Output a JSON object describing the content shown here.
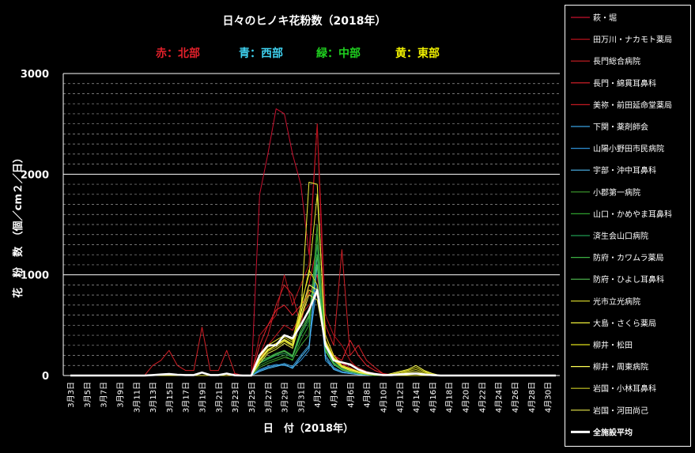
{
  "chart_data": {
    "type": "line",
    "title": "日々のヒノキ花粉数（2018年）",
    "region_labels": [
      {
        "text": "赤：北部",
        "color": "#e0202a"
      },
      {
        "text": "青：西部",
        "color": "#3fd2f0"
      },
      {
        "text": "緑：中部",
        "color": "#1fd01f"
      },
      {
        "text": "黄：東部",
        "color": "#f0f000"
      }
    ],
    "xlabel": "日　付（2018年）",
    "ylabel": "花　粉　数　（個／cm２／日）",
    "ylim": [
      0,
      3000
    ],
    "yticks": [
      "0",
      "1000",
      "2000",
      "3000"
    ],
    "minor_gridlines": true,
    "legend_position": "right",
    "x_tick_labels": [
      "3月3日",
      "3月5日",
      "3月7日",
      "3月9日",
      "3月11日",
      "3月13日",
      "3月15日",
      "3月17日",
      "3月19日",
      "3月21日",
      "3月23日",
      "3月25日",
      "3月27日",
      "3月29日",
      "3月31日",
      "4月2日",
      "4月4日",
      "4月6日",
      "4月8日",
      "4月10日",
      "4月12日",
      "4月14日",
      "4月16日",
      "4月18日",
      "4月20日",
      "4月22日",
      "4月24日",
      "4月26日",
      "4月28日",
      "4月30日"
    ],
    "series": [
      {
        "name": "萩・堀",
        "color": "#c8102e",
        "values": [
          0,
          0,
          0,
          0,
          0,
          0,
          0,
          0,
          0,
          0,
          0,
          0,
          0,
          0,
          0,
          0,
          0,
          0,
          0,
          0,
          20,
          0,
          0,
          1800,
          2200,
          2650,
          2600,
          2200,
          1900,
          1200,
          2500,
          300,
          200,
          120,
          80,
          40,
          20,
          0,
          0,
          0,
          0,
          0,
          0,
          0,
          0,
          0,
          0,
          0,
          0,
          0,
          0,
          0,
          0,
          0,
          0,
          0,
          0,
          0,
          0,
          0
        ]
      },
      {
        "name": "田万川・ナカモト薬局",
        "color": "#b5121b",
        "values": [
          0,
          0,
          0,
          0,
          0,
          0,
          0,
          0,
          0,
          0,
          0,
          0,
          0,
          0,
          0,
          0,
          0,
          0,
          0,
          0,
          10,
          0,
          0,
          400,
          500,
          600,
          1000,
          700,
          900,
          1100,
          2500,
          600,
          400,
          300,
          150,
          60,
          30,
          10,
          0,
          0,
          0,
          0,
          0,
          0,
          0,
          0,
          0,
          0,
          0,
          0,
          0,
          0,
          0,
          0,
          0,
          0,
          0,
          0,
          0,
          0
        ]
      },
      {
        "name": "長門総合病院",
        "color": "#d11f26",
        "values": [
          0,
          0,
          0,
          0,
          0,
          0,
          0,
          0,
          0,
          0,
          100,
          150,
          250,
          100,
          50,
          50,
          480,
          50,
          50,
          250,
          20,
          0,
          0,
          200,
          400,
          700,
          900,
          800,
          500,
          900,
          1300,
          500,
          300,
          1250,
          200,
          300,
          150,
          80,
          20,
          10,
          0,
          0,
          0,
          0,
          0,
          0,
          0,
          0,
          0,
          0,
          0,
          0,
          0,
          0,
          0,
          0,
          0,
          0,
          0,
          0
        ]
      },
      {
        "name": "長門・綿貫耳鼻科",
        "color": "#e4222c",
        "values": [
          0,
          0,
          0,
          0,
          0,
          0,
          0,
          0,
          0,
          0,
          0,
          0,
          0,
          0,
          0,
          0,
          0,
          0,
          0,
          0,
          0,
          0,
          0,
          300,
          500,
          650,
          700,
          600,
          700,
          800,
          1000,
          400,
          200,
          150,
          350,
          200,
          100,
          50,
          20,
          0,
          0,
          0,
          0,
          0,
          0,
          0,
          0,
          0,
          0,
          0,
          0,
          0,
          0,
          0,
          0,
          0,
          0,
          0,
          0,
          0
        ]
      },
      {
        "name": "美祢・前田延命堂薬局",
        "color": "#c41a22",
        "values": [
          0,
          0,
          0,
          0,
          0,
          0,
          0,
          0,
          0,
          0,
          0,
          0,
          0,
          0,
          0,
          0,
          0,
          0,
          0,
          0,
          0,
          0,
          0,
          150,
          300,
          400,
          500,
          450,
          600,
          700,
          800,
          300,
          150,
          100,
          120,
          80,
          40,
          20,
          0,
          0,
          0,
          0,
          0,
          0,
          0,
          0,
          0,
          0,
          0,
          0,
          0,
          0,
          0,
          0,
          0,
          0,
          0,
          0,
          0,
          0
        ]
      },
      {
        "name": "下関・薬剤師会",
        "color": "#3aa0e0",
        "values": [
          0,
          0,
          0,
          0,
          0,
          0,
          0,
          0,
          0,
          0,
          0,
          0,
          0,
          0,
          0,
          0,
          0,
          0,
          0,
          0,
          0,
          0,
          0,
          50,
          80,
          100,
          120,
          90,
          200,
          300,
          900,
          200,
          80,
          40,
          30,
          20,
          10,
          0,
          0,
          0,
          0,
          0,
          0,
          0,
          0,
          0,
          0,
          0,
          0,
          0,
          0,
          0,
          0,
          0,
          0,
          0,
          0,
          0,
          0,
          0
        ]
      },
      {
        "name": "山陽小野田市民病院",
        "color": "#2d8fd5",
        "values": [
          0,
          0,
          0,
          0,
          0,
          0,
          0,
          0,
          0,
          0,
          0,
          0,
          0,
          0,
          0,
          0,
          0,
          0,
          0,
          0,
          0,
          0,
          0,
          60,
          90,
          110,
          100,
          80,
          150,
          250,
          1100,
          150,
          70,
          30,
          20,
          10,
          5,
          0,
          0,
          0,
          0,
          0,
          0,
          0,
          0,
          0,
          0,
          0,
          0,
          0,
          0,
          0,
          0,
          0,
          0,
          0,
          0,
          0,
          0,
          0
        ]
      },
      {
        "name": "宇部・沖中耳鼻科",
        "color": "#4fb8f0",
        "values": [
          0,
          0,
          0,
          0,
          0,
          0,
          0,
          0,
          0,
          0,
          0,
          0,
          0,
          0,
          0,
          0,
          0,
          0,
          0,
          0,
          0,
          0,
          0,
          40,
          70,
          90,
          110,
          70,
          180,
          280,
          1200,
          180,
          60,
          30,
          20,
          10,
          5,
          0,
          0,
          0,
          0,
          0,
          0,
          0,
          0,
          0,
          0,
          0,
          0,
          0,
          0,
          0,
          0,
          0,
          0,
          0,
          0,
          0,
          0,
          0
        ]
      },
      {
        "name": "小郡第一病院",
        "color": "#3fa02f",
        "values": [
          0,
          0,
          0,
          0,
          0,
          0,
          0,
          0,
          0,
          0,
          0,
          0,
          0,
          0,
          0,
          0,
          0,
          0,
          0,
          0,
          0,
          0,
          0,
          80,
          120,
          150,
          180,
          160,
          300,
          400,
          1500,
          250,
          120,
          60,
          40,
          20,
          10,
          0,
          0,
          0,
          0,
          0,
          0,
          0,
          0,
          0,
          0,
          0,
          0,
          0,
          0,
          0,
          0,
          0,
          0,
          0,
          0,
          0,
          0,
          0
        ]
      },
      {
        "name": "山口・かめやま耳鼻科",
        "color": "#2e9e2e",
        "values": [
          0,
          0,
          0,
          0,
          0,
          0,
          0,
          0,
          0,
          0,
          0,
          0,
          0,
          0,
          0,
          0,
          0,
          0,
          0,
          0,
          0,
          0,
          0,
          100,
          140,
          170,
          200,
          150,
          350,
          500,
          1400,
          300,
          150,
          80,
          50,
          30,
          10,
          0,
          0,
          0,
          0,
          0,
          0,
          0,
          0,
          0,
          0,
          0,
          0,
          0,
          0,
          0,
          0,
          0,
          0,
          0,
          0,
          0,
          0,
          0
        ]
      },
      {
        "name": "済生会山口病院",
        "color": "#1f9a4f",
        "values": [
          0,
          0,
          0,
          0,
          0,
          0,
          0,
          0,
          0,
          0,
          0,
          0,
          0,
          0,
          0,
          0,
          0,
          0,
          0,
          0,
          0,
          0,
          0,
          120,
          160,
          200,
          220,
          180,
          400,
          550,
          1300,
          280,
          130,
          70,
          40,
          20,
          10,
          0,
          0,
          0,
          0,
          0,
          0,
          0,
          0,
          0,
          0,
          0,
          0,
          0,
          0,
          0,
          0,
          0,
          0,
          0,
          0,
          0,
          0,
          0
        ]
      },
      {
        "name": "防府・カワムラ薬局",
        "color": "#3cb043",
        "values": [
          0,
          0,
          0,
          0,
          0,
          0,
          0,
          0,
          0,
          0,
          0,
          0,
          0,
          0,
          0,
          0,
          0,
          0,
          0,
          0,
          0,
          0,
          0,
          150,
          180,
          220,
          250,
          200,
          450,
          600,
          1200,
          260,
          120,
          60,
          40,
          20,
          10,
          0,
          0,
          0,
          0,
          0,
          0,
          0,
          0,
          0,
          0,
          0,
          0,
          0,
          0,
          0,
          0,
          0,
          0,
          0,
          0,
          0,
          0,
          0
        ]
      },
      {
        "name": "防府・ひよし耳鼻科",
        "color": "#52c152",
        "values": [
          0,
          0,
          0,
          0,
          0,
          0,
          0,
          0,
          0,
          0,
          0,
          0,
          0,
          0,
          0,
          0,
          0,
          0,
          0,
          0,
          0,
          0,
          0,
          130,
          170,
          210,
          240,
          190,
          420,
          580,
          1100,
          240,
          110,
          55,
          35,
          20,
          10,
          0,
          0,
          0,
          0,
          0,
          0,
          0,
          0,
          0,
          0,
          0,
          0,
          0,
          0,
          0,
          0,
          0,
          0,
          0,
          0,
          0,
          0,
          0
        ]
      },
      {
        "name": "光市立光病院",
        "color": "#e6e62e",
        "values": [
          0,
          0,
          0,
          0,
          0,
          0,
          0,
          0,
          0,
          0,
          0,
          0,
          0,
          0,
          0,
          0,
          0,
          0,
          0,
          0,
          0,
          0,
          0,
          200,
          300,
          350,
          400,
          350,
          700,
          1000,
          1800,
          400,
          200,
          100,
          70,
          40,
          20,
          10,
          0,
          0,
          0,
          0,
          0,
          0,
          0,
          0,
          0,
          0,
          0,
          0,
          0,
          0,
          0,
          0,
          0,
          0,
          0,
          0,
          0,
          0
        ]
      },
      {
        "name": "大島・さくら薬局",
        "color": "#f2f23a",
        "values": [
          0,
          0,
          0,
          0,
          0,
          0,
          0,
          0,
          0,
          0,
          0,
          0,
          0,
          0,
          0,
          0,
          0,
          0,
          0,
          0,
          0,
          0,
          0,
          150,
          250,
          300,
          350,
          300,
          600,
          1920,
          1900,
          300,
          150,
          90,
          60,
          40,
          20,
          10,
          0,
          0,
          20,
          0,
          0,
          0,
          0,
          0,
          0,
          0,
          0,
          0,
          0,
          0,
          0,
          0,
          0,
          0,
          0,
          0,
          0,
          0
        ]
      },
      {
        "name": "柳井・松田",
        "color": "#dede1a",
        "values": [
          0,
          0,
          0,
          0,
          0,
          0,
          0,
          0,
          0,
          0,
          0,
          0,
          0,
          0,
          0,
          0,
          0,
          0,
          0,
          0,
          0,
          0,
          0,
          180,
          280,
          320,
          380,
          330,
          650,
          1050,
          900,
          350,
          180,
          100,
          70,
          40,
          20,
          10,
          0,
          10,
          30,
          50,
          80,
          40,
          10,
          0,
          0,
          0,
          0,
          0,
          0,
          0,
          0,
          0,
          0,
          0,
          0,
          0,
          0,
          0
        ]
      },
      {
        "name": "柳井・周東病院",
        "color": "#ffff55",
        "values": [
          0,
          0,
          0,
          0,
          0,
          0,
          0,
          0,
          0,
          0,
          0,
          0,
          0,
          0,
          0,
          0,
          0,
          0,
          0,
          0,
          0,
          0,
          0,
          160,
          260,
          300,
          360,
          310,
          620,
          900,
          850,
          330,
          170,
          90,
          60,
          35,
          20,
          10,
          0,
          20,
          40,
          60,
          100,
          50,
          20,
          0,
          0,
          0,
          0,
          0,
          0,
          0,
          0,
          0,
          0,
          0,
          0,
          0,
          0,
          0
        ]
      },
      {
        "name": "岩国・小林耳鼻科",
        "color": "#c8c823",
        "values": [
          0,
          0,
          0,
          0,
          0,
          0,
          0,
          0,
          0,
          0,
          0,
          0,
          0,
          0,
          0,
          0,
          0,
          0,
          0,
          0,
          0,
          0,
          0,
          140,
          240,
          280,
          340,
          290,
          580,
          850,
          800,
          310,
          160,
          85,
          55,
          30,
          15,
          5,
          0,
          10,
          30,
          40,
          60,
          30,
          10,
          0,
          0,
          0,
          0,
          0,
          0,
          0,
          0,
          0,
          0,
          0,
          0,
          0,
          0,
          0
        ]
      },
      {
        "name": "岩国・河田尚己",
        "color": "#e8e84a",
        "values": [
          0,
          0,
          0,
          0,
          0,
          0,
          0,
          0,
          0,
          0,
          0,
          0,
          0,
          0,
          0,
          0,
          0,
          0,
          0,
          0,
          0,
          0,
          0,
          120,
          220,
          260,
          320,
          270,
          560,
          800,
          750,
          290,
          150,
          80,
          50,
          30,
          15,
          5,
          0,
          10,
          20,
          30,
          40,
          20,
          5,
          0,
          0,
          0,
          0,
          0,
          0,
          0,
          0,
          0,
          0,
          0,
          0,
          0,
          0,
          0
        ]
      },
      {
        "name": "全施設平均",
        "color": "#ffffff",
        "values": [
          0,
          0,
          0,
          0,
          0,
          0,
          0,
          0,
          0,
          0,
          5,
          10,
          15,
          8,
          5,
          5,
          30,
          5,
          5,
          20,
          2,
          0,
          0,
          200,
          300,
          300,
          400,
          370,
          500,
          650,
          850,
          300,
          150,
          130,
          110,
          60,
          30,
          15,
          5,
          5,
          10,
          15,
          20,
          10,
          5,
          0,
          0,
          0,
          0,
          0,
          0,
          0,
          0,
          0,
          0,
          0,
          0,
          0,
          0,
          0
        ]
      }
    ]
  }
}
